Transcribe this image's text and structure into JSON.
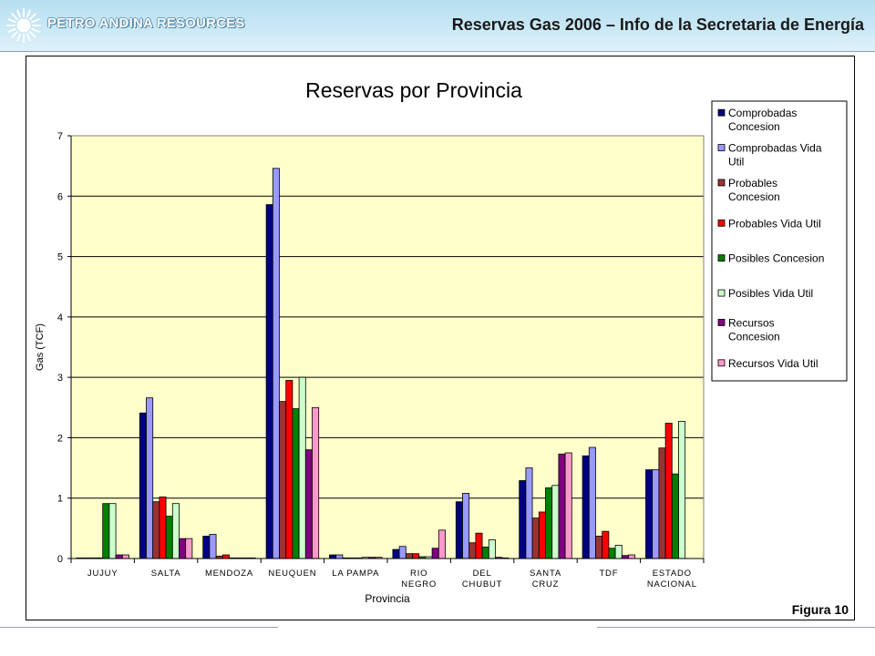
{
  "header": {
    "company": "PETRO ANDINA RESOURCES",
    "title": "Reservas Gas 2006 – Info de la Secretaria de Energía"
  },
  "figure_label": "Figura 10",
  "chart_data": {
    "type": "bar",
    "title": "Reservas por Provincia",
    "xlabel": "Provincia",
    "ylabel": "Gas (TCF)",
    "ylim": [
      0,
      7
    ],
    "yticks": [
      "0",
      "1",
      "2",
      "3",
      "4",
      "5",
      "6",
      "7"
    ],
    "grid": true,
    "legend_position": "right",
    "categories": [
      [
        "JUJUY"
      ],
      [
        "SALTA"
      ],
      [
        "MENDOZA"
      ],
      [
        "NEUQUEN"
      ],
      [
        "LA PAMPA"
      ],
      [
        "RIO",
        "NEGRO"
      ],
      [
        "DEL",
        "CHUBUT"
      ],
      [
        "SANTA",
        "CRUZ"
      ],
      [
        "TDF"
      ],
      [
        "ESTADO",
        "NACIONAL"
      ]
    ],
    "series": [
      {
        "name": [
          "Comprobadas",
          "Concesion"
        ],
        "color": "#000080",
        "values": [
          0.01,
          2.41,
          0.37,
          5.86,
          0.06,
          0.15,
          0.94,
          1.29,
          1.7,
          1.47
        ]
      },
      {
        "name": [
          "Comprobadas Vida",
          "Util"
        ],
        "color": "#9999ff",
        "values": [
          0.01,
          2.66,
          0.4,
          6.46,
          0.06,
          0.2,
          1.08,
          1.5,
          1.84,
          1.47
        ]
      },
      {
        "name": [
          "Probables",
          "Concesion"
        ],
        "color": "#993333",
        "values": [
          0.01,
          0.94,
          0.04,
          2.6,
          0.01,
          0.08,
          0.26,
          0.67,
          0.37,
          1.83
        ]
      },
      {
        "name": [
          "Probables Vida Util"
        ],
        "color": "#ff0000",
        "values": [
          0.01,
          1.02,
          0.06,
          2.95,
          0.01,
          0.08,
          0.42,
          0.77,
          0.45,
          2.24
        ]
      },
      {
        "name": [
          "Posibles Concesion"
        ],
        "color": "#008000",
        "values": [
          0.91,
          0.7,
          0.01,
          2.48,
          0.01,
          0.03,
          0.19,
          1.17,
          0.17,
          1.4
        ]
      },
      {
        "name": [
          "Posibles Vida Util"
        ],
        "color": "#ccffcc",
        "values": [
          0.91,
          0.91,
          0.01,
          3.0,
          0.02,
          0.03,
          0.31,
          1.21,
          0.22,
          2.27
        ]
      },
      {
        "name": [
          "Recursos",
          "Concesion"
        ],
        "color": "#800080",
        "values": [
          0.06,
          0.33,
          0.01,
          1.8,
          0.02,
          0.17,
          0.02,
          1.73,
          0.05,
          0.0
        ]
      },
      {
        "name": [
          "Recursos Vida Util"
        ],
        "color": "#ff99cc",
        "values": [
          0.06,
          0.33,
          0.01,
          2.5,
          0.02,
          0.47,
          0.01,
          1.75,
          0.06,
          0.0
        ]
      }
    ]
  }
}
